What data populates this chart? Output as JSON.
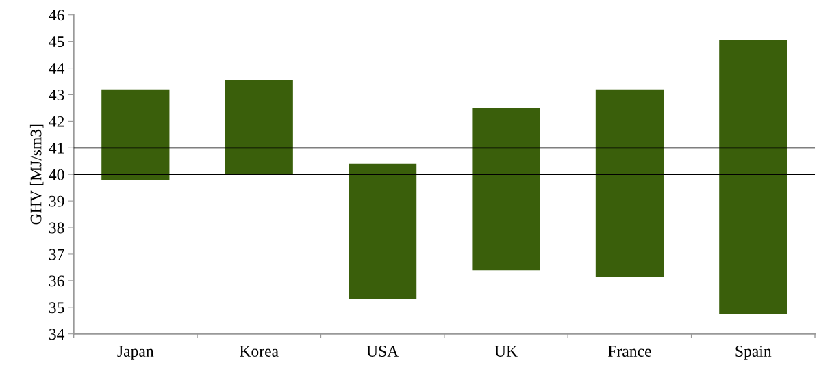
{
  "chart_data": {
    "type": "bar",
    "ylabel": "GHV [MJ/sm3]",
    "categories": [
      "Japan",
      "Korea",
      "USA",
      "UK",
      "France",
      "Spain"
    ],
    "base": [
      39.8,
      40.0,
      35.3,
      36.4,
      36.15,
      34.75
    ],
    "values": [
      3.4,
      3.55,
      5.1,
      6.1,
      7.05,
      10.3
    ],
    "color": "#3a5f0b",
    "ylim": [
      34,
      46
    ],
    "yticks": [
      34,
      35,
      36,
      37,
      38,
      39,
      40,
      41,
      42,
      43,
      44,
      45,
      46
    ],
    "ref_lines": [
      {
        "axis": "y",
        "value": 40,
        "color": "#000000"
      },
      {
        "axis": "y",
        "value": 41,
        "color": "#000000"
      }
    ],
    "grid": false,
    "legend": false
  }
}
